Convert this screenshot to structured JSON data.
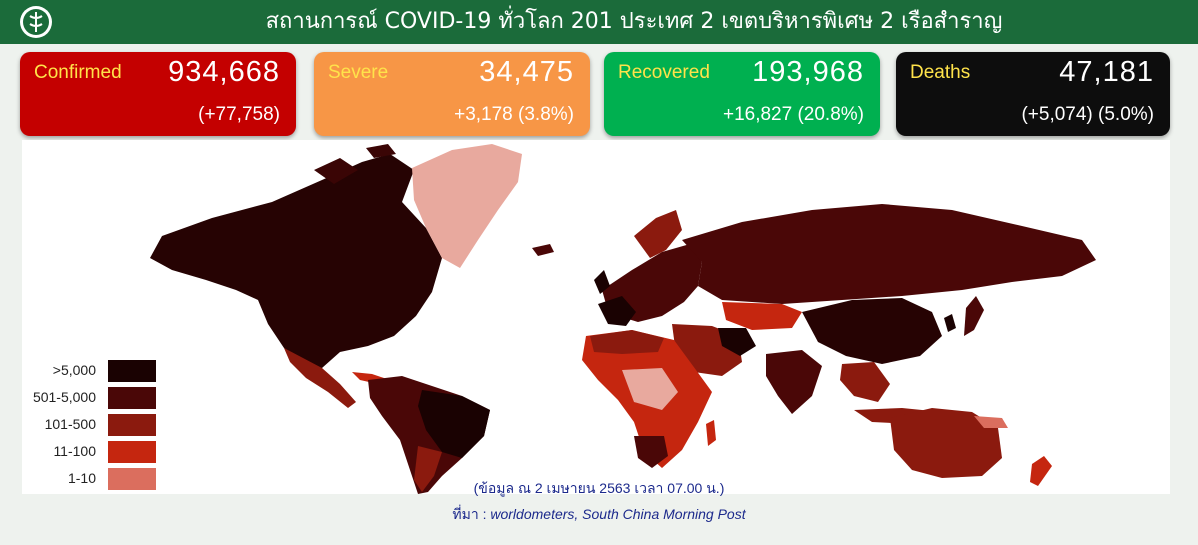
{
  "header": {
    "title": "สถานการณ์ COVID-19 ทั่วโลก 201 ประเทศ 2 เขตบริหารพิเศษ 2 เรือสำราญ",
    "logo_icon": "ministry-of-public-health-logo-icon"
  },
  "stats": {
    "confirmed": {
      "label": "Confirmed",
      "value": "934,668",
      "delta": "(+77,758)",
      "color": "#c40000"
    },
    "severe": {
      "label": "Severe",
      "value": "34,475",
      "delta": "+3,178 (3.8%)",
      "color": "#f79646"
    },
    "recovered": {
      "label": "Recovered",
      "value": "193,968",
      "delta": "+16,827 (20.8%)",
      "color": "#00b050"
    },
    "deaths": {
      "label": "Deaths",
      "value": "47,181",
      "delta": "(+5,074) (5.0%)",
      "color": "#0d0d0d"
    }
  },
  "legend": [
    {
      "label": ">5,000",
      "color": "#1a0202"
    },
    {
      "label": "501-5,000",
      "color": "#4a0707"
    },
    {
      "label": "101-500",
      "color": "#8b1a0e"
    },
    {
      "label": "11-100",
      "color": "#c5260f"
    },
    {
      "label": "1-10",
      "color": "#db6e5e"
    }
  ],
  "footer": {
    "date_note": "(ข้อมูล ณ 2 เมษายน 2563 เวลา 07.00 น.)",
    "source_label": "ที่มา :",
    "source_text": "worldometers,  South China Morning Post"
  }
}
